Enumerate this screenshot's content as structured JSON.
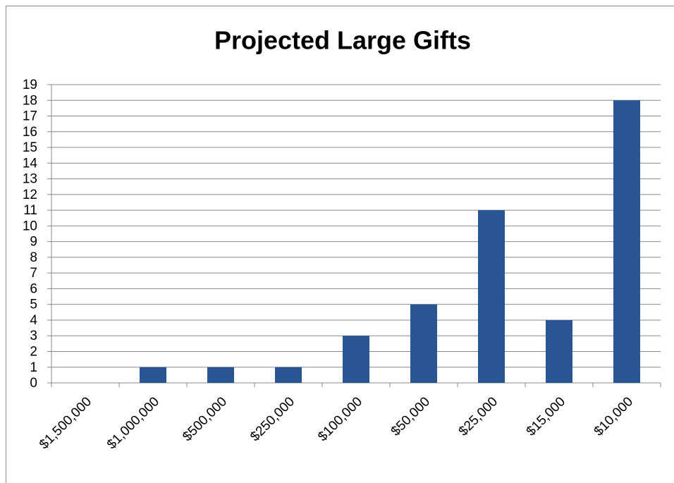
{
  "chart_data": {
    "type": "bar",
    "title": "Projected Large Gifts",
    "categories": [
      "$1,500,000",
      "$1,000,000",
      "$500,000",
      "$250,000",
      "$100,000",
      "$50,000",
      "$25,000",
      "$15,000",
      "$10,000"
    ],
    "values": [
      0,
      1,
      1,
      1,
      3,
      5,
      11,
      4,
      18
    ],
    "color": "#2a5593",
    "ylim": [
      0,
      19
    ],
    "yticks": [
      0,
      1,
      2,
      3,
      4,
      5,
      6,
      7,
      8,
      9,
      10,
      11,
      12,
      13,
      14,
      15,
      16,
      17,
      18,
      19
    ],
    "grid": true
  }
}
